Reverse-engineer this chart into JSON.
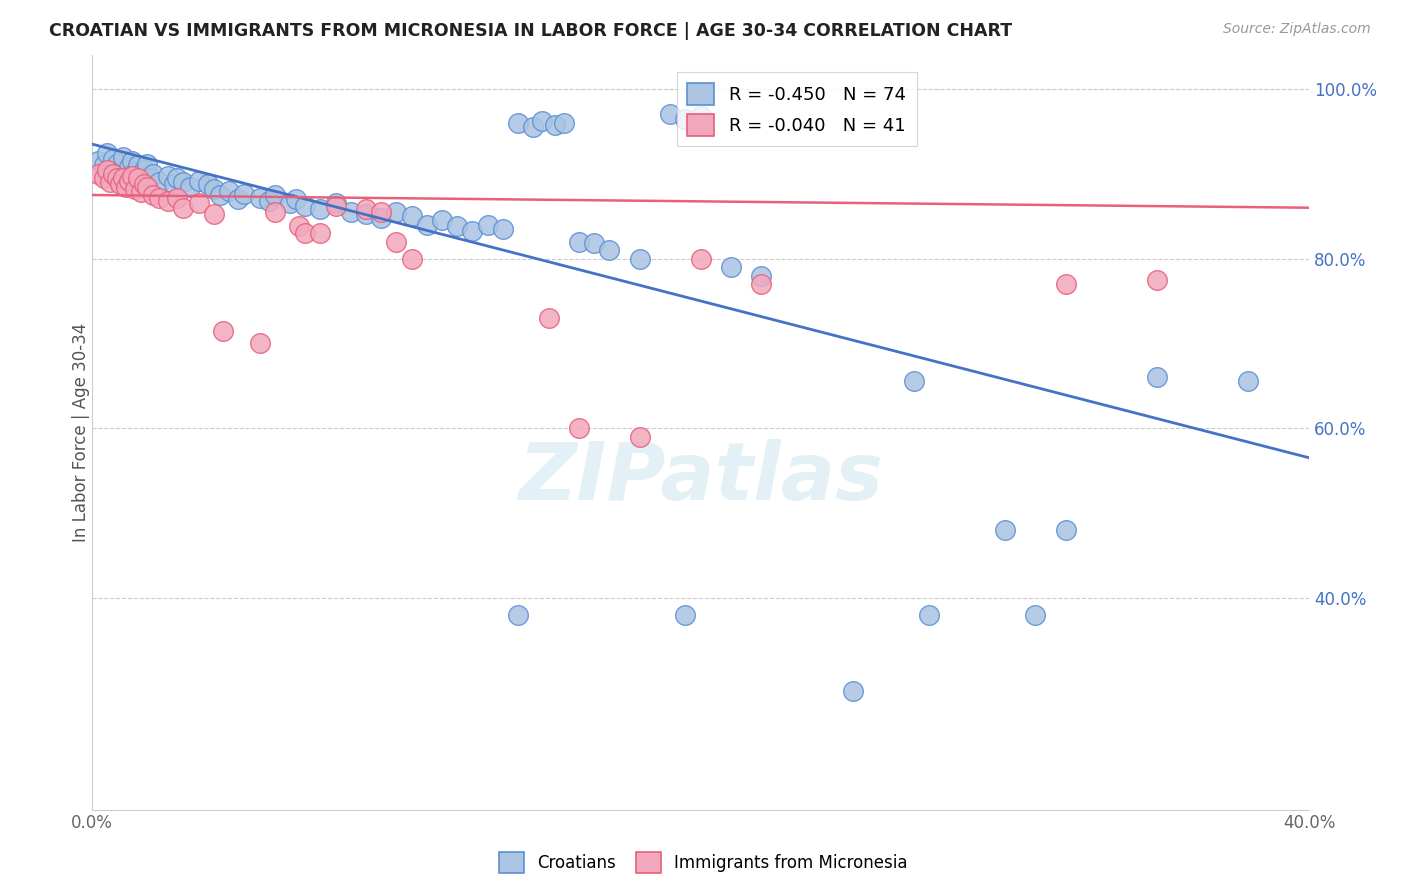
{
  "title": "CROATIAN VS IMMIGRANTS FROM MICRONESIA IN LABOR FORCE | AGE 30-34 CORRELATION CHART",
  "source_text": "Source: ZipAtlas.com",
  "ylabel": "In Labor Force | Age 30-34",
  "xlim": [
    0.0,
    0.4
  ],
  "ylim": [
    0.15,
    1.04
  ],
  "xticks": [
    0.0,
    0.1,
    0.2,
    0.3,
    0.4
  ],
  "xtick_labels": [
    "0.0%",
    "",
    "",
    "",
    "40.0%"
  ],
  "yticks_right": [
    0.4,
    0.6,
    0.8,
    1.0
  ],
  "ytick_labels_right": [
    "40.0%",
    "60.0%",
    "80.0%",
    "100.0%"
  ],
  "blue_color": "#aac4e2",
  "pink_color": "#f2a8bc",
  "blue_edge_color": "#5b8fd4",
  "pink_edge_color": "#e8607a",
  "blue_line_color": "#4472c4",
  "pink_line_color": "#e8607a",
  "blue_line_x": [
    0.0,
    0.4
  ],
  "blue_line_y": [
    0.935,
    0.565
  ],
  "pink_line_x": [
    0.0,
    0.4
  ],
  "pink_line_y": [
    0.875,
    0.86
  ],
  "watermark": "ZIPatlas",
  "blue_dots": [
    [
      0.002,
      0.915
    ],
    [
      0.004,
      0.91
    ],
    [
      0.005,
      0.925
    ],
    [
      0.006,
      0.905
    ],
    [
      0.007,
      0.918
    ],
    [
      0.008,
      0.912
    ],
    [
      0.009,
      0.9
    ],
    [
      0.01,
      0.92
    ],
    [
      0.011,
      0.895
    ],
    [
      0.012,
      0.908
    ],
    [
      0.013,
      0.915
    ],
    [
      0.014,
      0.902
    ],
    [
      0.015,
      0.91
    ],
    [
      0.016,
      0.898
    ],
    [
      0.017,
      0.905
    ],
    [
      0.018,
      0.912
    ],
    [
      0.019,
      0.895
    ],
    [
      0.02,
      0.9
    ],
    [
      0.022,
      0.89
    ],
    [
      0.025,
      0.898
    ],
    [
      0.027,
      0.888
    ],
    [
      0.028,
      0.895
    ],
    [
      0.03,
      0.89
    ],
    [
      0.032,
      0.885
    ],
    [
      0.035,
      0.892
    ],
    [
      0.038,
      0.888
    ],
    [
      0.04,
      0.882
    ],
    [
      0.042,
      0.875
    ],
    [
      0.045,
      0.88
    ],
    [
      0.048,
      0.87
    ],
    [
      0.05,
      0.876
    ],
    [
      0.055,
      0.872
    ],
    [
      0.058,
      0.868
    ],
    [
      0.06,
      0.875
    ],
    [
      0.065,
      0.865
    ],
    [
      0.067,
      0.87
    ],
    [
      0.07,
      0.862
    ],
    [
      0.075,
      0.858
    ],
    [
      0.08,
      0.865
    ],
    [
      0.085,
      0.855
    ],
    [
      0.09,
      0.852
    ],
    [
      0.095,
      0.848
    ],
    [
      0.1,
      0.855
    ],
    [
      0.105,
      0.85
    ],
    [
      0.11,
      0.84
    ],
    [
      0.115,
      0.845
    ],
    [
      0.12,
      0.838
    ],
    [
      0.125,
      0.832
    ],
    [
      0.13,
      0.84
    ],
    [
      0.135,
      0.835
    ],
    [
      0.14,
      0.96
    ],
    [
      0.145,
      0.955
    ],
    [
      0.148,
      0.962
    ],
    [
      0.152,
      0.958
    ],
    [
      0.155,
      0.96
    ],
    [
      0.16,
      0.82
    ],
    [
      0.165,
      0.818
    ],
    [
      0.17,
      0.81
    ],
    [
      0.18,
      0.8
    ],
    [
      0.19,
      0.97
    ],
    [
      0.195,
      0.965
    ],
    [
      0.2,
      0.968
    ],
    [
      0.21,
      0.79
    ],
    [
      0.22,
      0.78
    ],
    [
      0.25,
      0.29
    ],
    [
      0.27,
      0.655
    ],
    [
      0.3,
      0.48
    ],
    [
      0.32,
      0.48
    ],
    [
      0.35,
      0.66
    ],
    [
      0.38,
      0.655
    ],
    [
      0.275,
      0.38
    ],
    [
      0.31,
      0.38
    ],
    [
      0.195,
      0.38
    ],
    [
      0.14,
      0.38
    ]
  ],
  "pink_dots": [
    [
      0.002,
      0.9
    ],
    [
      0.004,
      0.895
    ],
    [
      0.005,
      0.905
    ],
    [
      0.006,
      0.89
    ],
    [
      0.007,
      0.9
    ],
    [
      0.008,
      0.895
    ],
    [
      0.009,
      0.888
    ],
    [
      0.01,
      0.895
    ],
    [
      0.011,
      0.885
    ],
    [
      0.012,
      0.892
    ],
    [
      0.013,
      0.898
    ],
    [
      0.014,
      0.882
    ],
    [
      0.015,
      0.895
    ],
    [
      0.016,
      0.878
    ],
    [
      0.017,
      0.888
    ],
    [
      0.018,
      0.885
    ],
    [
      0.02,
      0.875
    ],
    [
      0.022,
      0.872
    ],
    [
      0.025,
      0.868
    ],
    [
      0.028,
      0.872
    ],
    [
      0.03,
      0.86
    ],
    [
      0.035,
      0.865
    ],
    [
      0.04,
      0.852
    ],
    [
      0.06,
      0.855
    ],
    [
      0.068,
      0.838
    ],
    [
      0.07,
      0.83
    ],
    [
      0.075,
      0.83
    ],
    [
      0.08,
      0.862
    ],
    [
      0.09,
      0.858
    ],
    [
      0.095,
      0.855
    ],
    [
      0.1,
      0.82
    ],
    [
      0.105,
      0.8
    ],
    [
      0.15,
      0.73
    ],
    [
      0.16,
      0.6
    ],
    [
      0.18,
      0.59
    ],
    [
      0.2,
      0.8
    ],
    [
      0.22,
      0.77
    ],
    [
      0.32,
      0.77
    ],
    [
      0.35,
      0.775
    ],
    [
      0.043,
      0.715
    ],
    [
      0.055,
      0.7
    ]
  ]
}
